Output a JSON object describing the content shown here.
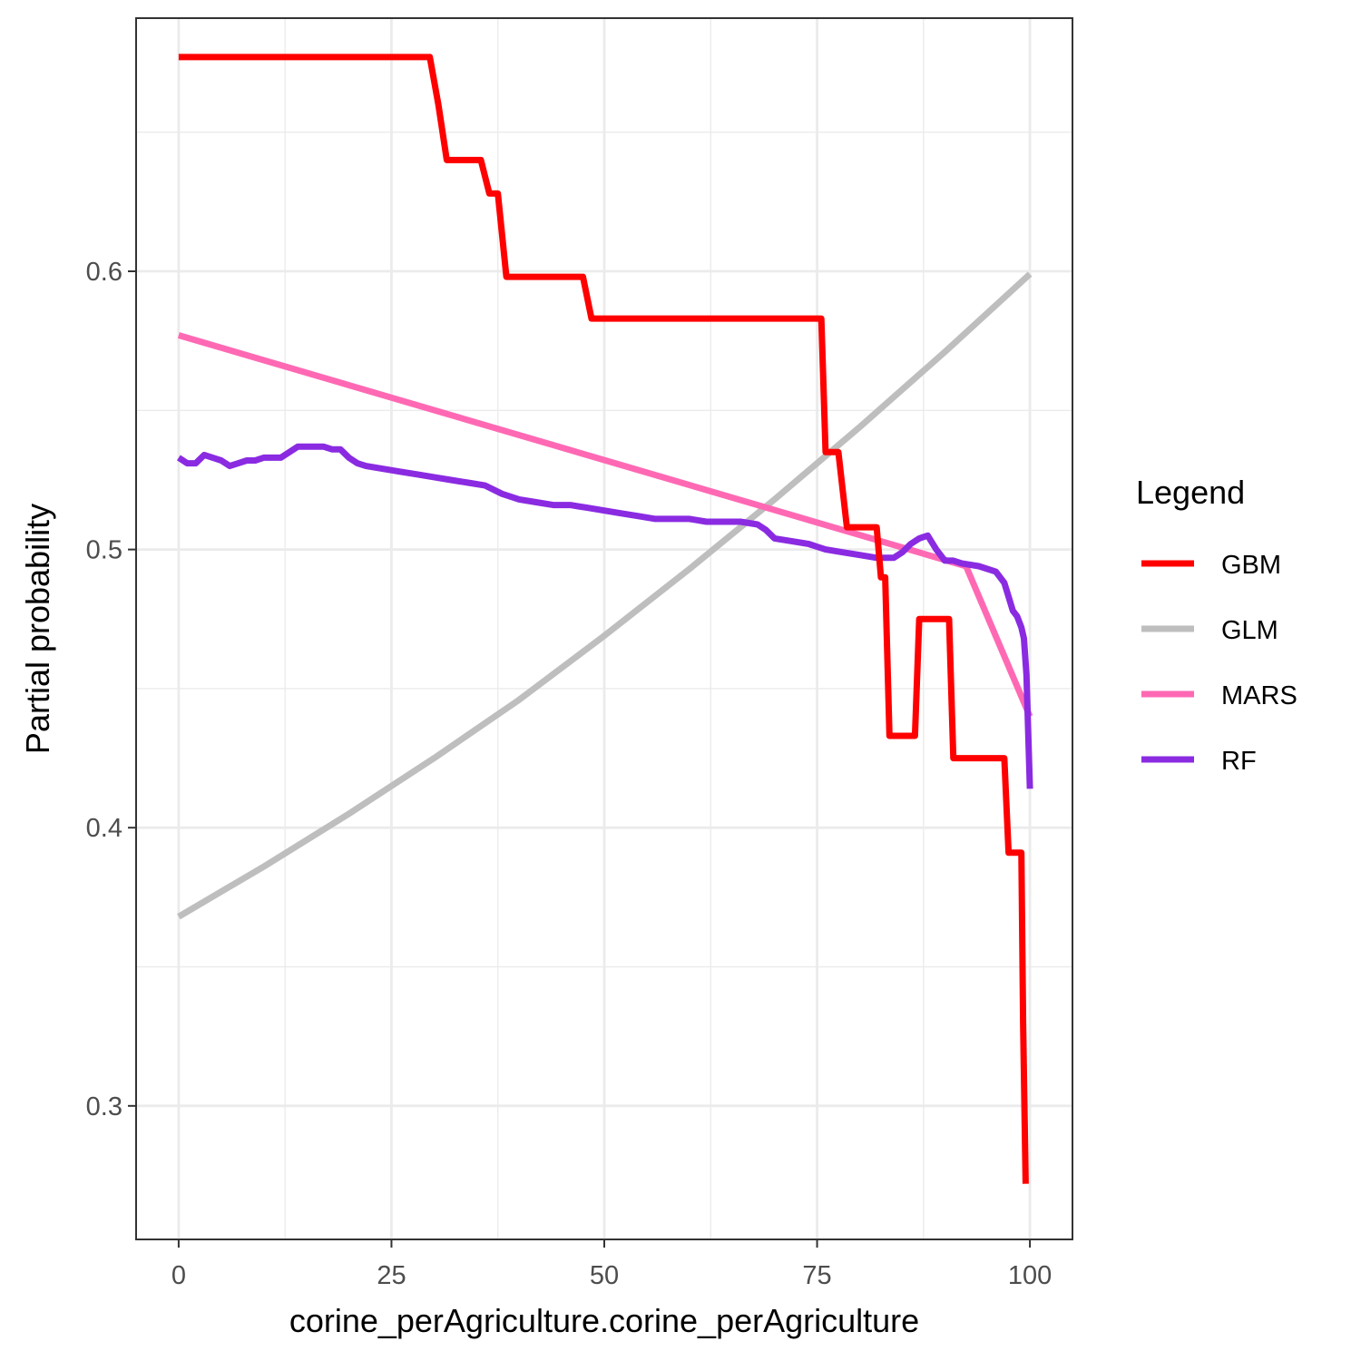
{
  "chart_data": {
    "type": "line",
    "xlabel": "corine_perAgriculture.corine_perAgriculture",
    "ylabel": "Partial probability",
    "xlim": [
      -5,
      105
    ],
    "ylim": [
      0.252,
      0.691
    ],
    "x_ticks": [
      0,
      25,
      50,
      75,
      100
    ],
    "x_tick_labels": [
      "0",
      "25",
      "50",
      "75",
      "100"
    ],
    "y_ticks": [
      0.3,
      0.4,
      0.5,
      0.6
    ],
    "y_tick_labels": [
      "0.3",
      "0.4",
      "0.5",
      "0.6"
    ],
    "grid": true,
    "legend": {
      "title": "Legend",
      "position": "right"
    },
    "series": [
      {
        "name": "GBM",
        "color": "#ff0000",
        "points": [
          [
            0,
            0.677
          ],
          [
            29.5,
            0.677
          ],
          [
            30.5,
            0.66
          ],
          [
            31.5,
            0.64
          ],
          [
            35.5,
            0.64
          ],
          [
            36.5,
            0.628
          ],
          [
            37.5,
            0.628
          ],
          [
            38.5,
            0.598
          ],
          [
            47.5,
            0.598
          ],
          [
            48.5,
            0.583
          ],
          [
            75.5,
            0.583
          ],
          [
            76,
            0.535
          ],
          [
            77.5,
            0.535
          ],
          [
            78.5,
            0.508
          ],
          [
            82,
            0.508
          ],
          [
            82.5,
            0.49
          ],
          [
            83,
            0.49
          ],
          [
            83.5,
            0.433
          ],
          [
            86.5,
            0.433
          ],
          [
            87,
            0.475
          ],
          [
            90.5,
            0.475
          ],
          [
            91,
            0.425
          ],
          [
            97,
            0.425
          ],
          [
            97.5,
            0.391
          ],
          [
            99,
            0.391
          ],
          [
            99.2,
            0.33
          ],
          [
            99.5,
            0.272
          ]
        ]
      },
      {
        "name": "GLM",
        "color": "#bebebe",
        "points": [
          [
            0,
            0.368
          ],
          [
            10,
            0.386
          ],
          [
            20,
            0.405
          ],
          [
            30,
            0.425
          ],
          [
            40,
            0.446
          ],
          [
            50,
            0.469
          ],
          [
            60,
            0.493
          ],
          [
            70,
            0.518
          ],
          [
            80,
            0.544
          ],
          [
            90,
            0.571
          ],
          [
            100,
            0.599
          ]
        ]
      },
      {
        "name": "MARS",
        "color": "#ff69b4",
        "points": [
          [
            0,
            0.577
          ],
          [
            92.5,
            0.494
          ],
          [
            100,
            0.44
          ]
        ]
      },
      {
        "name": "RF",
        "color": "#8a2be2",
        "points": [
          [
            0,
            0.533
          ],
          [
            1,
            0.531
          ],
          [
            2,
            0.531
          ],
          [
            3,
            0.534
          ],
          [
            4,
            0.533
          ],
          [
            5,
            0.532
          ],
          [
            6,
            0.53
          ],
          [
            7,
            0.531
          ],
          [
            8,
            0.532
          ],
          [
            9,
            0.532
          ],
          [
            10,
            0.533
          ],
          [
            11,
            0.533
          ],
          [
            12,
            0.533
          ],
          [
            13,
            0.535
          ],
          [
            14,
            0.537
          ],
          [
            15,
            0.537
          ],
          [
            16,
            0.537
          ],
          [
            17,
            0.537
          ],
          [
            18,
            0.536
          ],
          [
            19,
            0.536
          ],
          [
            20,
            0.533
          ],
          [
            21,
            0.531
          ],
          [
            22,
            0.53
          ],
          [
            24,
            0.529
          ],
          [
            26,
            0.528
          ],
          [
            28,
            0.527
          ],
          [
            30,
            0.526
          ],
          [
            32,
            0.525
          ],
          [
            34,
            0.524
          ],
          [
            36,
            0.523
          ],
          [
            38,
            0.52
          ],
          [
            40,
            0.518
          ],
          [
            42,
            0.517
          ],
          [
            44,
            0.516
          ],
          [
            46,
            0.516
          ],
          [
            48,
            0.515
          ],
          [
            50,
            0.514
          ],
          [
            52,
            0.513
          ],
          [
            54,
            0.512
          ],
          [
            56,
            0.511
          ],
          [
            58,
            0.511
          ],
          [
            60,
            0.511
          ],
          [
            62,
            0.51
          ],
          [
            64,
            0.51
          ],
          [
            66,
            0.51
          ],
          [
            68,
            0.509
          ],
          [
            69,
            0.507
          ],
          [
            70,
            0.504
          ],
          [
            72,
            0.503
          ],
          [
            74,
            0.502
          ],
          [
            75,
            0.501
          ],
          [
            76,
            0.5
          ],
          [
            78,
            0.499
          ],
          [
            80,
            0.498
          ],
          [
            82,
            0.497
          ],
          [
            84,
            0.497
          ],
          [
            85,
            0.499
          ],
          [
            86,
            0.502
          ],
          [
            87,
            0.504
          ],
          [
            88,
            0.505
          ],
          [
            89,
            0.5
          ],
          [
            90,
            0.496
          ],
          [
            91,
            0.496
          ],
          [
            92,
            0.495
          ],
          [
            94,
            0.494
          ],
          [
            96,
            0.492
          ],
          [
            97,
            0.488
          ],
          [
            97.5,
            0.483
          ],
          [
            98,
            0.478
          ],
          [
            98.5,
            0.476
          ],
          [
            99,
            0.472
          ],
          [
            99.3,
            0.468
          ],
          [
            99.6,
            0.455
          ],
          [
            100,
            0.414
          ]
        ]
      }
    ]
  }
}
